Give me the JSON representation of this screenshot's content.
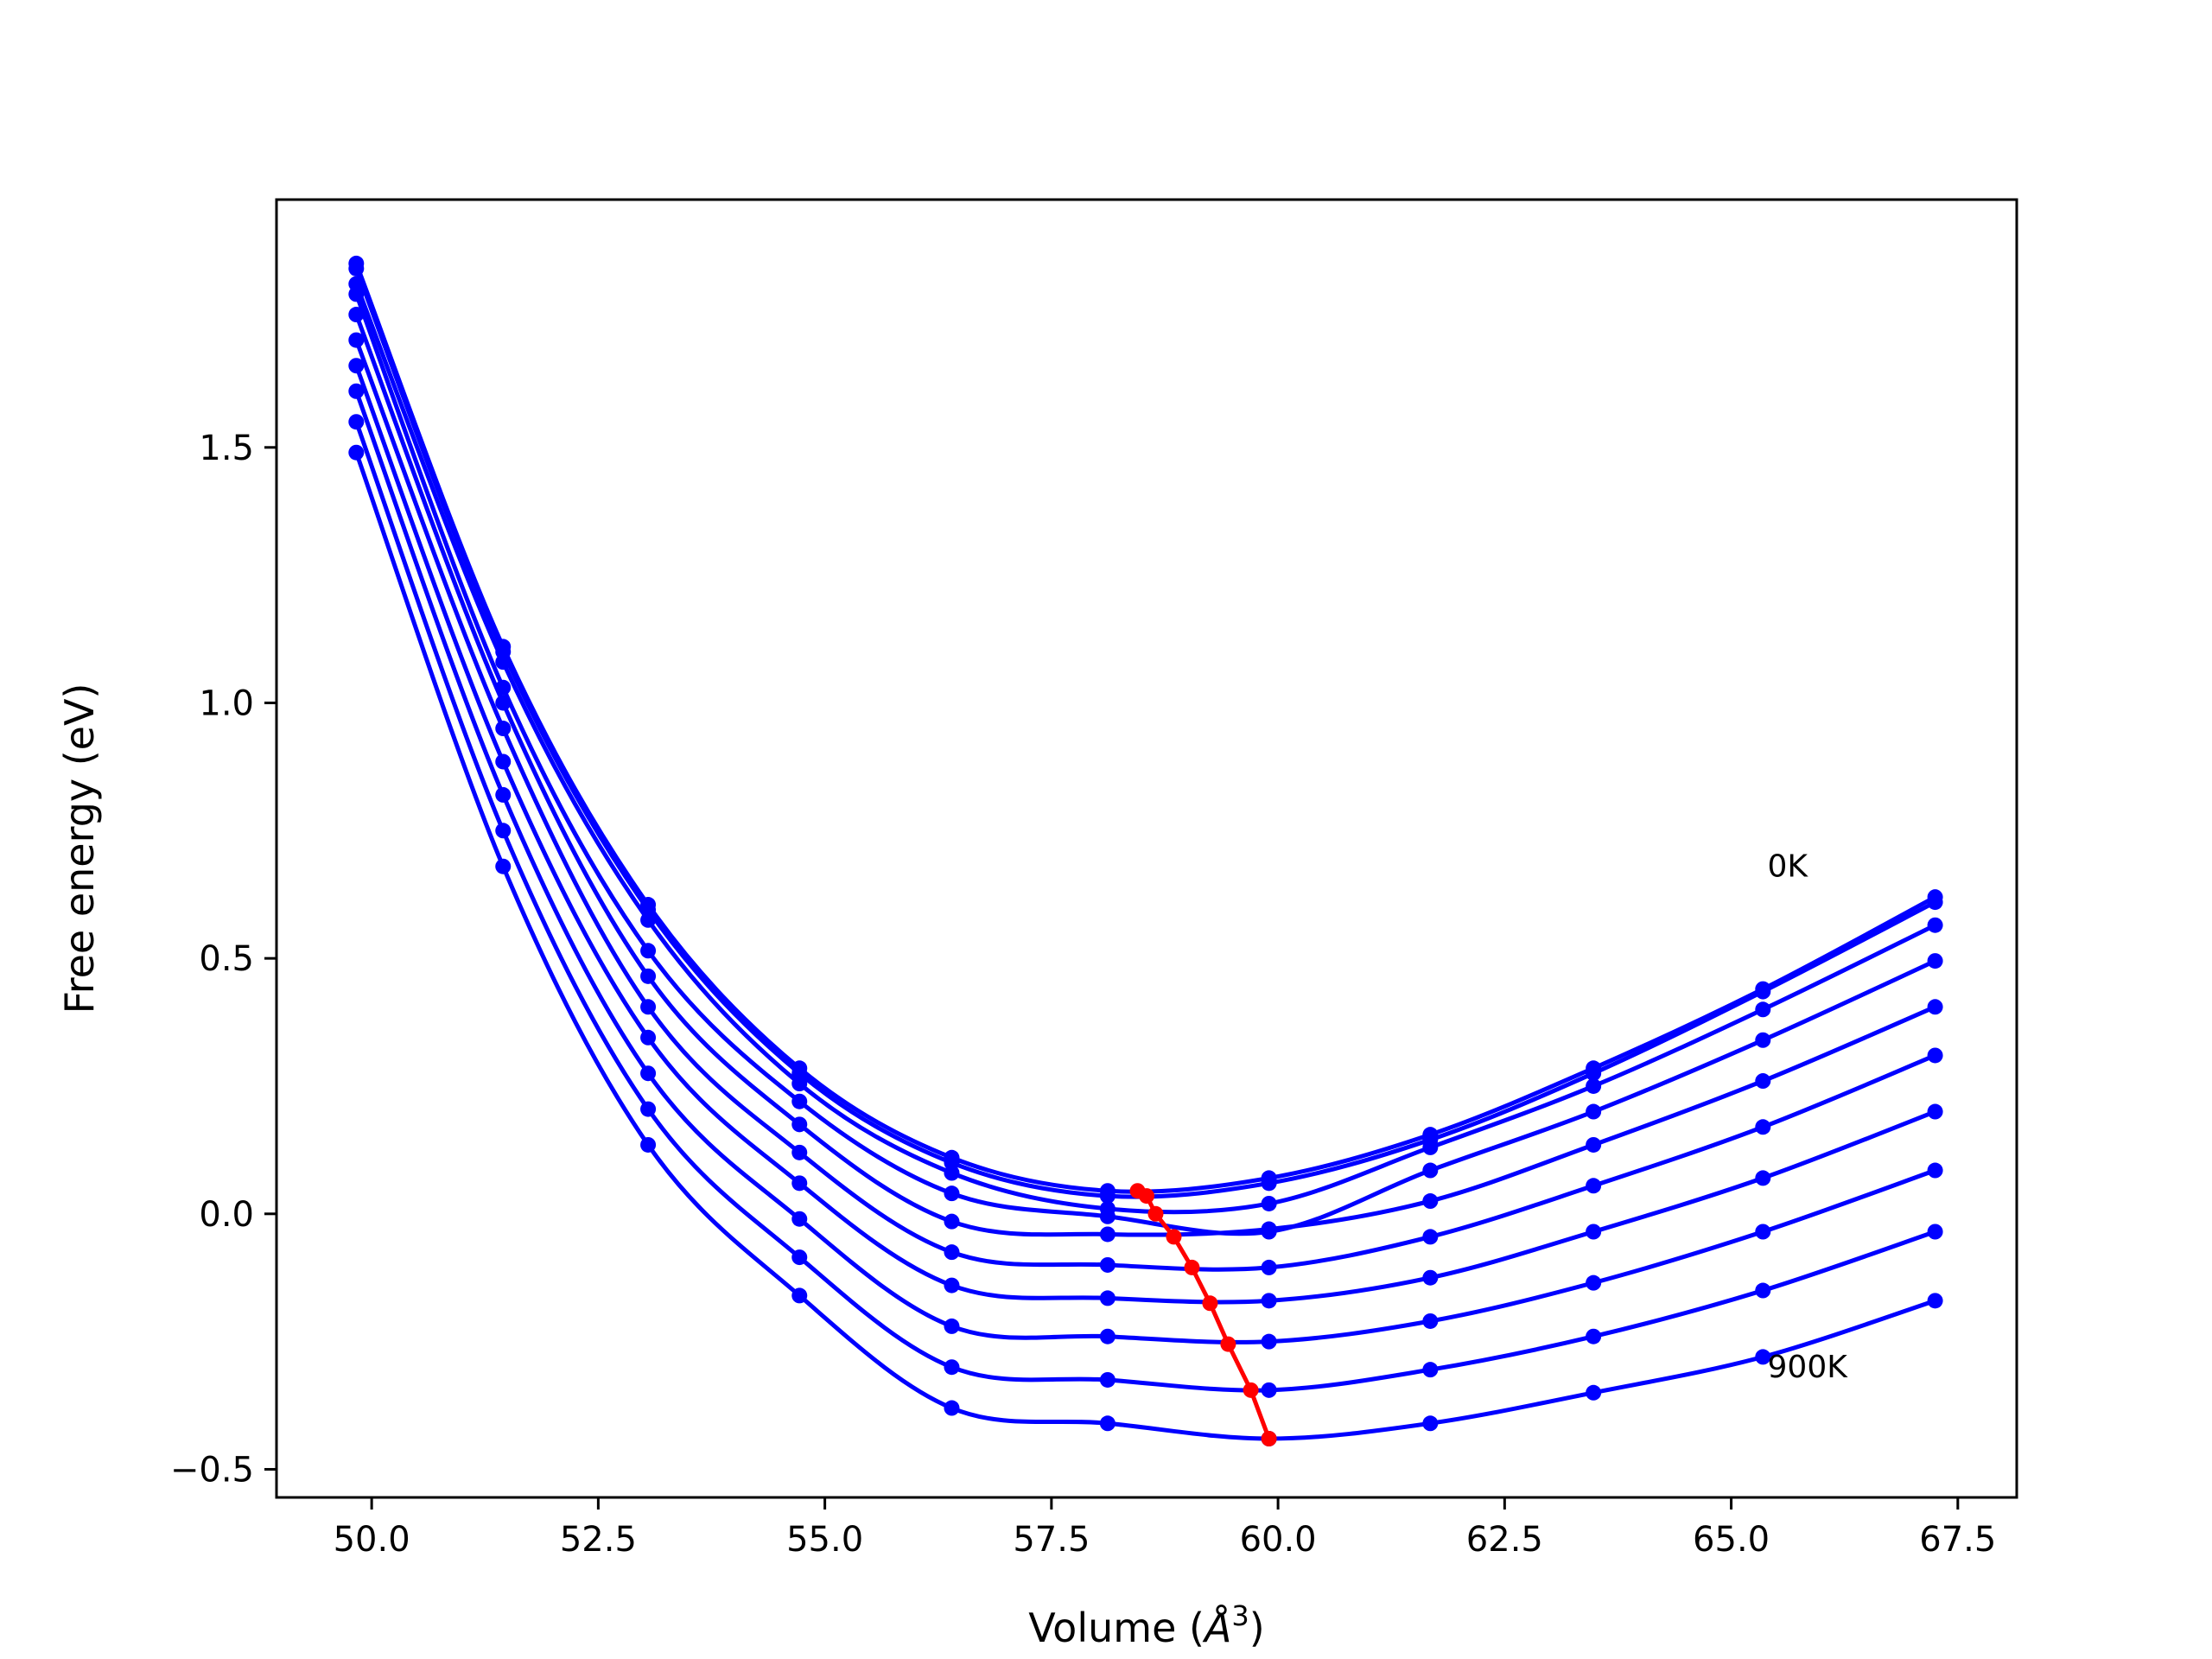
{
  "chart_data": {
    "type": "line",
    "title": "",
    "xlabel_main": "Volume (",
    "xlabel_unit": "Å",
    "xlabel_exp": "3",
    "xlabel_end": ")",
    "ylabel": "Free energy (eV)",
    "xlim": [
      48.95,
      68.15
    ],
    "ylim": [
      -0.555,
      1.985
    ],
    "xticks": [
      50.0,
      52.5,
      55.0,
      57.5,
      60.0,
      62.5,
      65.0,
      67.5
    ],
    "xtick_labels": [
      "50.0",
      "52.5",
      "55.0",
      "57.5",
      "60.0",
      "62.5",
      "65.0",
      "67.5"
    ],
    "yticks": [
      -0.5,
      0.0,
      0.5,
      1.0,
      1.5
    ],
    "ytick_labels": [
      "−0.5",
      "0.0",
      "0.5",
      "1.0",
      "1.5"
    ],
    "grid": false,
    "annotations": [
      {
        "text": "0K",
        "x": 65.4,
        "y": 0.66
      },
      {
        "text": "900K",
        "x": 65.4,
        "y": -0.32
      }
    ],
    "x": [
      49.83,
      51.45,
      53.05,
      54.72,
      56.4,
      58.12,
      59.9,
      61.68,
      63.48,
      65.35,
      67.25
    ],
    "series": [
      {
        "color": "#0000ff",
        "values": [
          1.86,
          1.11,
          0.605,
          0.285,
          0.11,
          0.045,
          0.07,
          0.155,
          0.285,
          0.44,
          0.62
        ]
      },
      {
        "color": "#0000ff",
        "values": [
          1.85,
          1.1,
          0.595,
          0.275,
          0.1,
          0.035,
          0.06,
          0.145,
          0.275,
          0.435,
          0.61
        ]
      },
      {
        "color": "#0000ff",
        "values": [
          1.82,
          1.08,
          0.575,
          0.255,
          0.08,
          0.01,
          0.02,
          0.13,
          0.25,
          0.4,
          0.565
        ]
      },
      {
        "color": "#0000ff",
        "values": [
          1.8,
          1.03,
          0.515,
          0.22,
          0.04,
          -0.005,
          -0.035,
          0.085,
          0.2,
          0.34,
          0.495
        ]
      },
      {
        "color": "#0000ff",
        "values": [
          1.76,
          1.0,
          0.465,
          0.175,
          -0.015,
          -0.04,
          -0.03,
          0.025,
          0.135,
          0.26,
          0.405
        ]
      },
      {
        "color": "#0000ff",
        "values": [
          1.71,
          0.95,
          0.405,
          0.12,
          -0.075,
          -0.1,
          -0.105,
          -0.045,
          0.055,
          0.17,
          0.31
        ]
      },
      {
        "color": "#0000ff",
        "values": [
          1.66,
          0.885,
          0.345,
          0.06,
          -0.14,
          -0.165,
          -0.17,
          -0.125,
          -0.035,
          0.07,
          0.2
        ]
      },
      {
        "color": "#0000ff",
        "values": [
          1.61,
          0.82,
          0.275,
          -0.01,
          -0.22,
          -0.24,
          -0.25,
          -0.21,
          -0.135,
          -0.035,
          0.085
        ]
      },
      {
        "color": "#0000ff",
        "values": [
          1.55,
          0.75,
          0.205,
          -0.085,
          -0.3,
          -0.325,
          -0.345,
          -0.305,
          -0.24,
          -0.15,
          -0.035
        ]
      },
      {
        "color": "#0000ff",
        "values": [
          1.49,
          0.68,
          0.135,
          -0.16,
          -0.38,
          -0.41,
          -0.44,
          -0.41,
          -0.35,
          -0.28,
          -0.17
        ]
      }
    ],
    "minimum_curve": {
      "color": "#ff0000",
      "x": [
        58.45,
        58.55,
        58.65,
        58.85,
        59.05,
        59.25,
        59.45,
        59.7,
        59.9
      ],
      "y": [
        0.045,
        0.035,
        0.0,
        -0.045,
        -0.105,
        -0.175,
        -0.255,
        -0.345,
        -0.44
      ]
    }
  }
}
